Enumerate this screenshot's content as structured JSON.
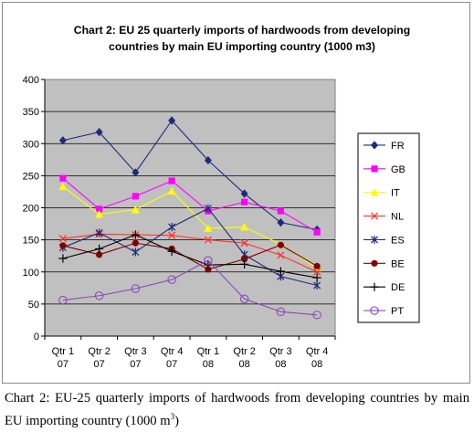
{
  "chart_data": {
    "type": "line",
    "title": "Chart 2: EU 25 quarterly imports of hardwoods from developing countries by main EU importing country (1000 m3)",
    "title_lines": [
      "Chart 2: EU 25 quarterly imports of hardwoods from developing",
      "countries by main EU importing country (1000 m3)"
    ],
    "categories": [
      [
        "Qtr 1",
        "07"
      ],
      [
        "Qtr 2",
        "07"
      ],
      [
        "Qtr 3",
        "07"
      ],
      [
        "Qtr 4",
        "07"
      ],
      [
        "Qtr 1",
        "08"
      ],
      [
        "Qtr 2",
        "08"
      ],
      [
        "Qtr 3",
        "08"
      ],
      [
        "Qtr 4",
        "08"
      ]
    ],
    "ylim": [
      0,
      400
    ],
    "yticks": [
      0,
      50,
      100,
      150,
      200,
      250,
      300,
      350,
      400
    ],
    "grid": true,
    "plot_background": "#c0c0c0",
    "legend_position": "right",
    "series": [
      {
        "name": "FR",
        "color": "#1f2a7a",
        "marker": "diamond",
        "values": [
          305,
          318,
          255,
          336,
          274,
          222,
          177,
          166
        ]
      },
      {
        "name": "GB",
        "color": "#ff00ff",
        "marker": "square",
        "values": [
          246,
          198,
          218,
          242,
          195,
          209,
          195,
          162
        ]
      },
      {
        "name": "IT",
        "color": "#ffff00",
        "marker": "triangle",
        "values": [
          233,
          190,
          197,
          226,
          168,
          170,
          143,
          106
        ]
      },
      {
        "name": "NL",
        "color": "#ff3030",
        "marker": "x",
        "values": [
          152,
          159,
          158,
          157,
          150,
          145,
          126,
          100
        ]
      },
      {
        "name": "ES",
        "color": "#1f2a7a",
        "marker": "asterisk",
        "values": [
          138,
          161,
          131,
          170,
          199,
          127,
          93,
          79
        ]
      },
      {
        "name": "BE",
        "color": "#800000",
        "marker": "circle",
        "values": [
          141,
          127,
          145,
          136,
          104,
          120,
          142,
          109
        ]
      },
      {
        "name": "DE",
        "color": "#000000",
        "marker": "plus",
        "values": [
          121,
          136,
          158,
          132,
          111,
          112,
          101,
          91
        ]
      },
      {
        "name": "PT",
        "color": "#8a4ab8",
        "marker": "open-circle",
        "values": [
          56,
          63,
          74,
          88,
          118,
          58,
          38,
          33
        ]
      }
    ]
  },
  "caption": {
    "text": "Chart 2: EU-25 quarterly imports of hardwoods from developing countries by main EU importing country (1000 m",
    "sup": "3",
    "tail": ")"
  }
}
